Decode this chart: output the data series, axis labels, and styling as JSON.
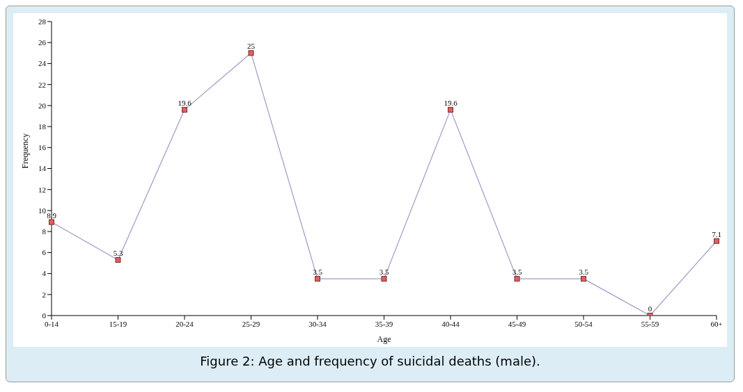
{
  "chart_data": {
    "type": "line",
    "xlabel": "Age",
    "ylabel": "Frequency",
    "categories": [
      "0-14",
      "15-19",
      "20-24",
      "25-29",
      "30-34",
      "35-39",
      "40-44",
      "45-49",
      "50-54",
      "55-59",
      "60+"
    ],
    "series": [
      {
        "color": "#9a9ac8",
        "values": [
          8.9,
          5.3,
          19.6,
          25,
          3.5,
          3.5,
          19.6,
          3.5,
          3.5,
          0,
          7.1
        ]
      }
    ],
    "ylim": [
      0,
      28
    ],
    "yticks": [
      0,
      2,
      4,
      6,
      8,
      10,
      12,
      14,
      16,
      18,
      20,
      22,
      24,
      26,
      28
    ],
    "grid": false,
    "legend": false,
    "marker": "square",
    "line_style": "solid",
    "data_labels": true,
    "annotations": [
      "Figure 2: Age and frequency of suicidal deaths (male)."
    ]
  }
}
